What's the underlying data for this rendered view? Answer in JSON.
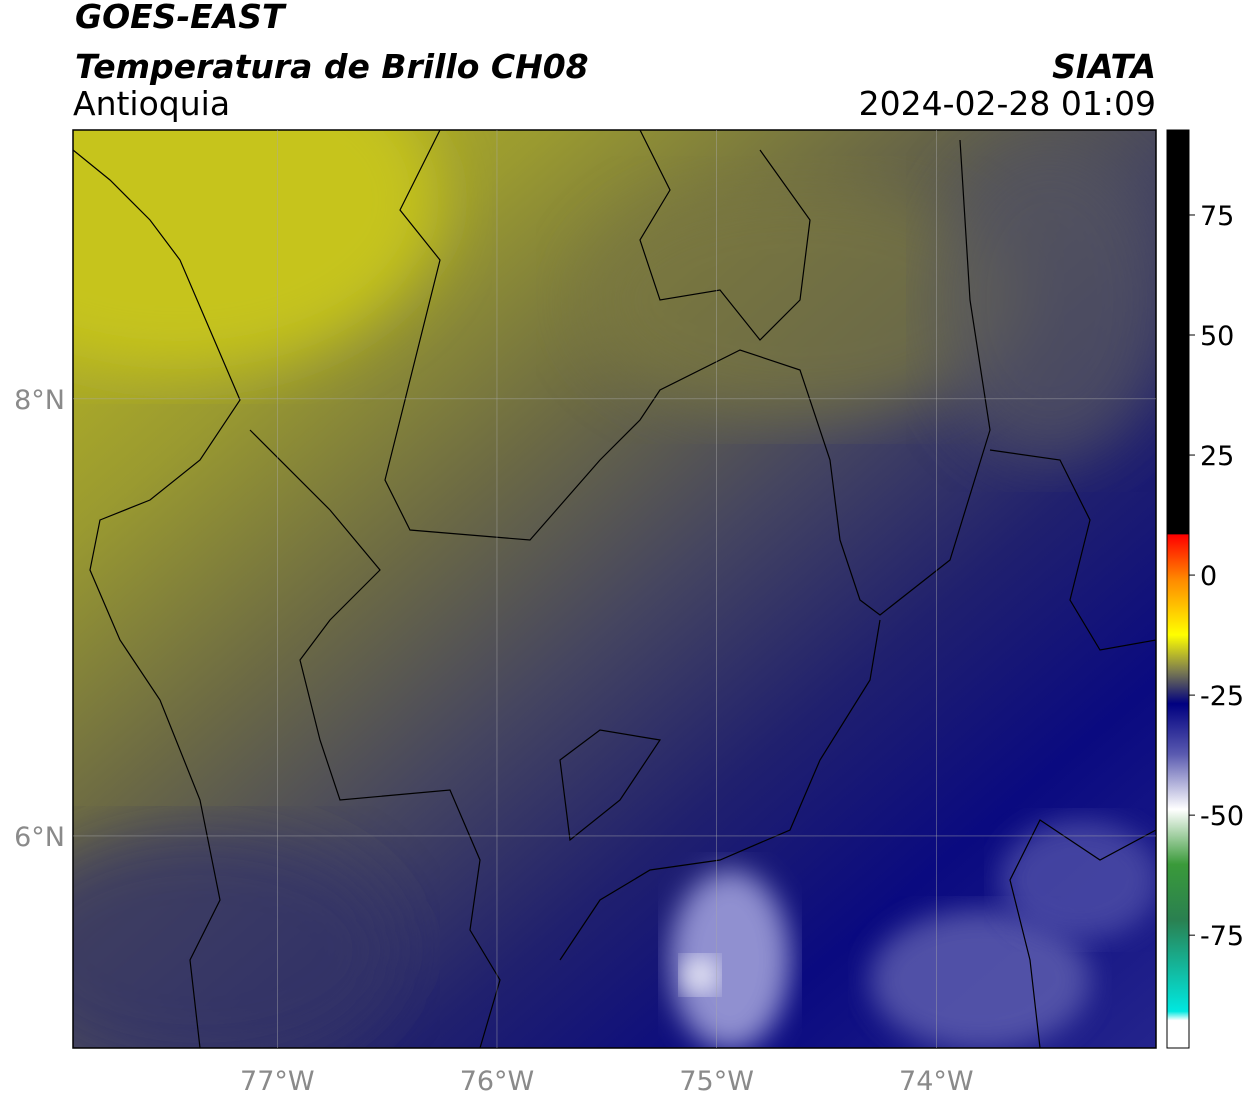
{
  "header": {
    "title": "GOES-EAST",
    "subtitle": "Temperatura de Brillo CH08",
    "region": "Antioquia",
    "source": "SIATA",
    "timestamp": "2024-02-28 01:09"
  },
  "map": {
    "xlim": [
      -77.93,
      -73.0
    ],
    "ylim": [
      5.03,
      9.23
    ],
    "xticks": [
      {
        "value": -77,
        "label": "77°W"
      },
      {
        "value": -76,
        "label": "76°W"
      },
      {
        "value": -75,
        "label": "75°W"
      },
      {
        "value": -74,
        "label": "74°W"
      }
    ],
    "yticks": [
      {
        "value": 6,
        "label": "6°N"
      },
      {
        "value": 8,
        "label": "8°N"
      }
    ],
    "grid": true
  },
  "colorbar": {
    "lim": [
      -98.5,
      92.7
    ],
    "ticks": [
      -75,
      -50,
      -25,
      0,
      25,
      50,
      75
    ]
  }
}
